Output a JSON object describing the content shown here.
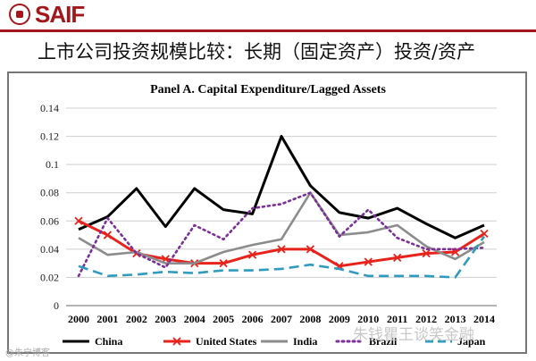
{
  "header": {
    "logo": "SAIF",
    "title": "上市公司投资规模比较：长期（固定资产）投资/资产"
  },
  "watermarks": {
    "left": "@朱宁博客",
    "right": "朱钱瞿王谈笑金融"
  },
  "chart_data": {
    "type": "line",
    "title": "Panel A. Capital Expenditure/Lagged Assets",
    "xlabel": "",
    "ylabel": "",
    "categories": [
      "2000",
      "2001",
      "2002",
      "2003",
      "2004",
      "2005",
      "2006",
      "2007",
      "2008",
      "2009",
      "2010",
      "2011",
      "2012",
      "2013",
      "2014"
    ],
    "ylim": [
      0,
      0.14
    ],
    "yticks": [
      "0",
      "0.02",
      "0.04",
      "0.06",
      "0.08",
      "0.1",
      "0.12",
      "0.14"
    ],
    "grid": "horizontal",
    "legend_position": "bottom",
    "series": [
      {
        "name": "China",
        "color": "#000000",
        "style": "solid",
        "values": [
          0.054,
          0.063,
          0.083,
          0.056,
          0.083,
          0.068,
          0.065,
          0.12,
          0.085,
          0.066,
          0.062,
          0.069,
          0.058,
          0.048,
          0.057
        ]
      },
      {
        "name": "United States",
        "color": "#e8231b",
        "style": "solid-x",
        "values": [
          0.06,
          0.05,
          0.037,
          0.033,
          0.03,
          0.03,
          0.036,
          0.04,
          0.04,
          0.028,
          0.031,
          0.034,
          0.037,
          0.038,
          0.051
        ]
      },
      {
        "name": "India",
        "color": "#8c8c8c",
        "style": "solid",
        "values": [
          0.048,
          0.036,
          0.038,
          0.03,
          0.03,
          0.038,
          0.043,
          0.047,
          0.08,
          0.05,
          0.052,
          0.057,
          0.042,
          0.033,
          0.045
        ]
      },
      {
        "name": "Brazil",
        "color": "#7a2f99",
        "style": "dotted",
        "values": [
          0.021,
          0.062,
          0.037,
          0.027,
          0.057,
          0.047,
          0.069,
          0.072,
          0.08,
          0.049,
          0.068,
          0.048,
          0.04,
          0.04,
          0.041
        ]
      },
      {
        "name": "Japan",
        "color": "#2e9bbf",
        "style": "dashed",
        "values": [
          0.028,
          0.021,
          0.022,
          0.024,
          0.023,
          0.025,
          0.025,
          0.026,
          0.029,
          0.026,
          0.021,
          0.021,
          0.021,
          0.02,
          0.049
        ]
      }
    ]
  }
}
